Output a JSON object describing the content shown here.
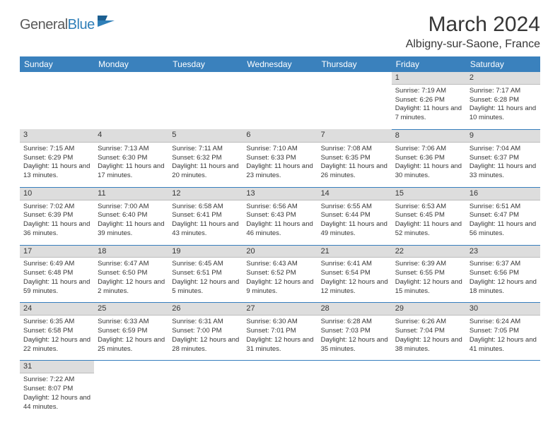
{
  "logo": {
    "general": "General",
    "blue": "Blue"
  },
  "title": "March 2024",
  "location": "Albigny-sur-Saone, France",
  "colors": {
    "header_bg": "#3a81bd",
    "header_text": "#ffffff",
    "daynum_bg": "#dddddd",
    "cell_border": "#357ebd",
    "body_text": "#363636",
    "logo_gray": "#5a5a5a",
    "logo_blue": "#2f7fb8"
  },
  "weekdays": [
    "Sunday",
    "Monday",
    "Tuesday",
    "Wednesday",
    "Thursday",
    "Friday",
    "Saturday"
  ],
  "weeks": [
    [
      null,
      null,
      null,
      null,
      null,
      {
        "n": "1",
        "sr": "Sunrise: 7:19 AM",
        "ss": "Sunset: 6:26 PM",
        "dl": "Daylight: 11 hours and 7 minutes."
      },
      {
        "n": "2",
        "sr": "Sunrise: 7:17 AM",
        "ss": "Sunset: 6:28 PM",
        "dl": "Daylight: 11 hours and 10 minutes."
      }
    ],
    [
      {
        "n": "3",
        "sr": "Sunrise: 7:15 AM",
        "ss": "Sunset: 6:29 PM",
        "dl": "Daylight: 11 hours and 13 minutes."
      },
      {
        "n": "4",
        "sr": "Sunrise: 7:13 AM",
        "ss": "Sunset: 6:30 PM",
        "dl": "Daylight: 11 hours and 17 minutes."
      },
      {
        "n": "5",
        "sr": "Sunrise: 7:11 AM",
        "ss": "Sunset: 6:32 PM",
        "dl": "Daylight: 11 hours and 20 minutes."
      },
      {
        "n": "6",
        "sr": "Sunrise: 7:10 AM",
        "ss": "Sunset: 6:33 PM",
        "dl": "Daylight: 11 hours and 23 minutes."
      },
      {
        "n": "7",
        "sr": "Sunrise: 7:08 AM",
        "ss": "Sunset: 6:35 PM",
        "dl": "Daylight: 11 hours and 26 minutes."
      },
      {
        "n": "8",
        "sr": "Sunrise: 7:06 AM",
        "ss": "Sunset: 6:36 PM",
        "dl": "Daylight: 11 hours and 30 minutes."
      },
      {
        "n": "9",
        "sr": "Sunrise: 7:04 AM",
        "ss": "Sunset: 6:37 PM",
        "dl": "Daylight: 11 hours and 33 minutes."
      }
    ],
    [
      {
        "n": "10",
        "sr": "Sunrise: 7:02 AM",
        "ss": "Sunset: 6:39 PM",
        "dl": "Daylight: 11 hours and 36 minutes."
      },
      {
        "n": "11",
        "sr": "Sunrise: 7:00 AM",
        "ss": "Sunset: 6:40 PM",
        "dl": "Daylight: 11 hours and 39 minutes."
      },
      {
        "n": "12",
        "sr": "Sunrise: 6:58 AM",
        "ss": "Sunset: 6:41 PM",
        "dl": "Daylight: 11 hours and 43 minutes."
      },
      {
        "n": "13",
        "sr": "Sunrise: 6:56 AM",
        "ss": "Sunset: 6:43 PM",
        "dl": "Daylight: 11 hours and 46 minutes."
      },
      {
        "n": "14",
        "sr": "Sunrise: 6:55 AM",
        "ss": "Sunset: 6:44 PM",
        "dl": "Daylight: 11 hours and 49 minutes."
      },
      {
        "n": "15",
        "sr": "Sunrise: 6:53 AM",
        "ss": "Sunset: 6:45 PM",
        "dl": "Daylight: 11 hours and 52 minutes."
      },
      {
        "n": "16",
        "sr": "Sunrise: 6:51 AM",
        "ss": "Sunset: 6:47 PM",
        "dl": "Daylight: 11 hours and 56 minutes."
      }
    ],
    [
      {
        "n": "17",
        "sr": "Sunrise: 6:49 AM",
        "ss": "Sunset: 6:48 PM",
        "dl": "Daylight: 11 hours and 59 minutes."
      },
      {
        "n": "18",
        "sr": "Sunrise: 6:47 AM",
        "ss": "Sunset: 6:50 PM",
        "dl": "Daylight: 12 hours and 2 minutes."
      },
      {
        "n": "19",
        "sr": "Sunrise: 6:45 AM",
        "ss": "Sunset: 6:51 PM",
        "dl": "Daylight: 12 hours and 5 minutes."
      },
      {
        "n": "20",
        "sr": "Sunrise: 6:43 AM",
        "ss": "Sunset: 6:52 PM",
        "dl": "Daylight: 12 hours and 9 minutes."
      },
      {
        "n": "21",
        "sr": "Sunrise: 6:41 AM",
        "ss": "Sunset: 6:54 PM",
        "dl": "Daylight: 12 hours and 12 minutes."
      },
      {
        "n": "22",
        "sr": "Sunrise: 6:39 AM",
        "ss": "Sunset: 6:55 PM",
        "dl": "Daylight: 12 hours and 15 minutes."
      },
      {
        "n": "23",
        "sr": "Sunrise: 6:37 AM",
        "ss": "Sunset: 6:56 PM",
        "dl": "Daylight: 12 hours and 18 minutes."
      }
    ],
    [
      {
        "n": "24",
        "sr": "Sunrise: 6:35 AM",
        "ss": "Sunset: 6:58 PM",
        "dl": "Daylight: 12 hours and 22 minutes."
      },
      {
        "n": "25",
        "sr": "Sunrise: 6:33 AM",
        "ss": "Sunset: 6:59 PM",
        "dl": "Daylight: 12 hours and 25 minutes."
      },
      {
        "n": "26",
        "sr": "Sunrise: 6:31 AM",
        "ss": "Sunset: 7:00 PM",
        "dl": "Daylight: 12 hours and 28 minutes."
      },
      {
        "n": "27",
        "sr": "Sunrise: 6:30 AM",
        "ss": "Sunset: 7:01 PM",
        "dl": "Daylight: 12 hours and 31 minutes."
      },
      {
        "n": "28",
        "sr": "Sunrise: 6:28 AM",
        "ss": "Sunset: 7:03 PM",
        "dl": "Daylight: 12 hours and 35 minutes."
      },
      {
        "n": "29",
        "sr": "Sunrise: 6:26 AM",
        "ss": "Sunset: 7:04 PM",
        "dl": "Daylight: 12 hours and 38 minutes."
      },
      {
        "n": "30",
        "sr": "Sunrise: 6:24 AM",
        "ss": "Sunset: 7:05 PM",
        "dl": "Daylight: 12 hours and 41 minutes."
      }
    ],
    [
      {
        "n": "31",
        "sr": "Sunrise: 7:22 AM",
        "ss": "Sunset: 8:07 PM",
        "dl": "Daylight: 12 hours and 44 minutes."
      },
      null,
      null,
      null,
      null,
      null,
      null
    ]
  ]
}
